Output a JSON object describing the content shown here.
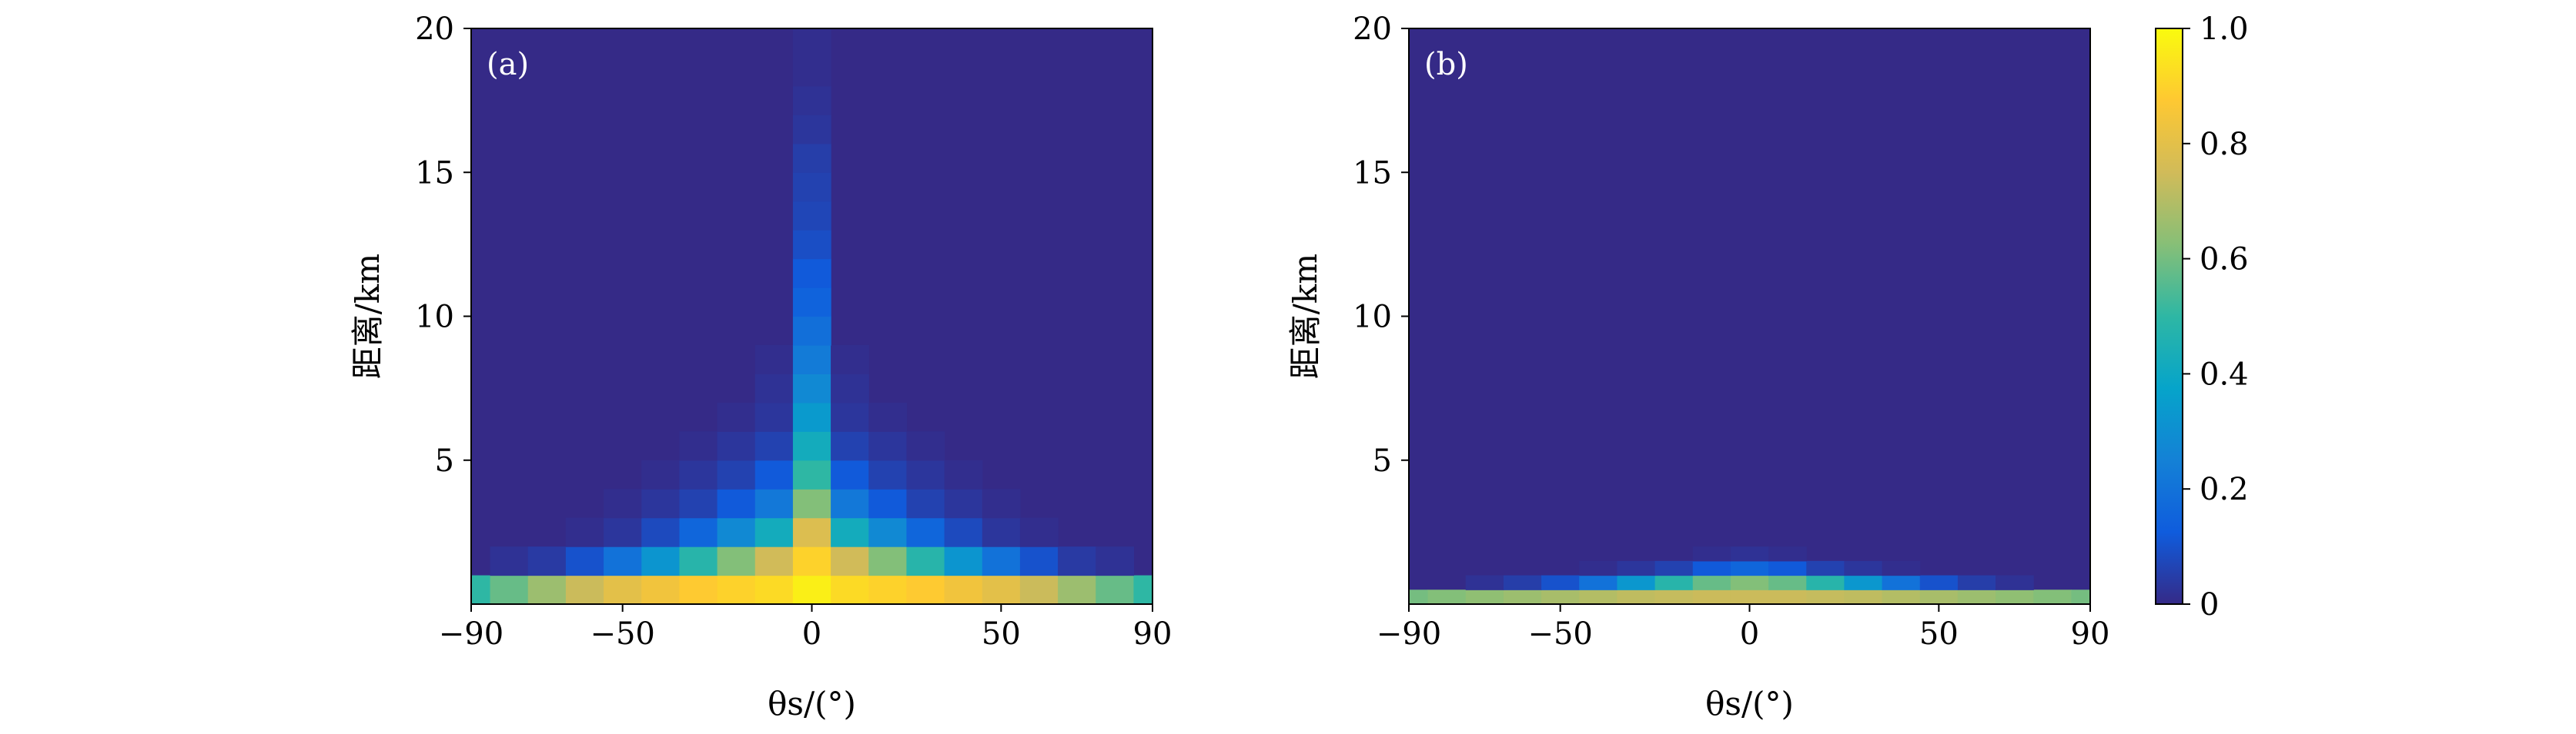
{
  "chart_data": [
    {
      "type": "heatmap",
      "panel_label": "(a)",
      "xlabel": "θs/(°)",
      "ylabel": "距离/km",
      "xlim": [
        -90,
        90
      ],
      "ylim": [
        0,
        20
      ],
      "xticks": [
        "−90",
        "−50",
        "0",
        "50",
        "90"
      ],
      "xtick_values": [
        -90,
        -50,
        0,
        50,
        90
      ],
      "yticks": [
        "5",
        "10",
        "15",
        "20"
      ],
      "ytick_values": [
        5,
        10,
        15,
        20
      ],
      "x": [
        -90,
        -80,
        -70,
        -60,
        -50,
        -40,
        -30,
        -20,
        -10,
        0,
        10,
        20,
        30,
        40,
        50,
        60,
        70,
        80,
        90
      ],
      "y": [
        0.5,
        1.5,
        2.5,
        3.5,
        4.5,
        5.5,
        6.5,
        7.5,
        8.5,
        9.5,
        10.5,
        11.5,
        12.5,
        13.5,
        14.5,
        15.5,
        16.5,
        17.5,
        18.5,
        19.5
      ],
      "z": [
        [
          0.5,
          0.58,
          0.66,
          0.74,
          0.8,
          0.84,
          0.88,
          0.9,
          0.92,
          0.97,
          0.92,
          0.9,
          0.88,
          0.84,
          0.8,
          0.74,
          0.66,
          0.58,
          0.5
        ],
        [
          0.0,
          0.02,
          0.04,
          0.1,
          0.2,
          0.32,
          0.48,
          0.62,
          0.75,
          0.9,
          0.75,
          0.62,
          0.48,
          0.32,
          0.2,
          0.1,
          0.04,
          0.02,
          0.0
        ],
        [
          0.0,
          0.0,
          0.0,
          0.01,
          0.03,
          0.08,
          0.16,
          0.28,
          0.42,
          0.78,
          0.42,
          0.28,
          0.16,
          0.08,
          0.03,
          0.01,
          0.0,
          0.0,
          0.0
        ],
        [
          0.0,
          0.0,
          0.0,
          0.0,
          0.01,
          0.03,
          0.06,
          0.12,
          0.22,
          0.62,
          0.22,
          0.12,
          0.06,
          0.03,
          0.01,
          0.0,
          0.0,
          0.0,
          0.0
        ],
        [
          0.0,
          0.0,
          0.0,
          0.0,
          0.0,
          0.01,
          0.03,
          0.06,
          0.12,
          0.5,
          0.12,
          0.06,
          0.03,
          0.01,
          0.0,
          0.0,
          0.0,
          0.0,
          0.0
        ],
        [
          0.0,
          0.0,
          0.0,
          0.0,
          0.0,
          0.0,
          0.01,
          0.03,
          0.06,
          0.42,
          0.06,
          0.03,
          0.01,
          0.0,
          0.0,
          0.0,
          0.0,
          0.0,
          0.0
        ],
        [
          0.0,
          0.0,
          0.0,
          0.0,
          0.0,
          0.0,
          0.0,
          0.01,
          0.03,
          0.34,
          0.03,
          0.01,
          0.0,
          0.0,
          0.0,
          0.0,
          0.0,
          0.0,
          0.0
        ],
        [
          0.0,
          0.0,
          0.0,
          0.0,
          0.0,
          0.0,
          0.0,
          0.0,
          0.02,
          0.28,
          0.02,
          0.0,
          0.0,
          0.0,
          0.0,
          0.0,
          0.0,
          0.0,
          0.0
        ],
        [
          0.0,
          0.0,
          0.0,
          0.0,
          0.0,
          0.0,
          0.0,
          0.0,
          0.01,
          0.23,
          0.01,
          0.0,
          0.0,
          0.0,
          0.0,
          0.0,
          0.0,
          0.0,
          0.0
        ],
        [
          0.0,
          0.0,
          0.0,
          0.0,
          0.0,
          0.0,
          0.0,
          0.0,
          0.0,
          0.19,
          0.0,
          0.0,
          0.0,
          0.0,
          0.0,
          0.0,
          0.0,
          0.0,
          0.0
        ],
        [
          0.0,
          0.0,
          0.0,
          0.0,
          0.0,
          0.0,
          0.0,
          0.0,
          0.0,
          0.15,
          0.0,
          0.0,
          0.0,
          0.0,
          0.0,
          0.0,
          0.0,
          0.0,
          0.0
        ],
        [
          0.0,
          0.0,
          0.0,
          0.0,
          0.0,
          0.0,
          0.0,
          0.0,
          0.0,
          0.12,
          0.0,
          0.0,
          0.0,
          0.0,
          0.0,
          0.0,
          0.0,
          0.0,
          0.0
        ],
        [
          0.0,
          0.0,
          0.0,
          0.0,
          0.0,
          0.0,
          0.0,
          0.0,
          0.0,
          0.09,
          0.0,
          0.0,
          0.0,
          0.0,
          0.0,
          0.0,
          0.0,
          0.0,
          0.0
        ],
        [
          0.0,
          0.0,
          0.0,
          0.0,
          0.0,
          0.0,
          0.0,
          0.0,
          0.0,
          0.07,
          0.0,
          0.0,
          0.0,
          0.0,
          0.0,
          0.0,
          0.0,
          0.0,
          0.0
        ],
        [
          0.0,
          0.0,
          0.0,
          0.0,
          0.0,
          0.0,
          0.0,
          0.0,
          0.0,
          0.06,
          0.0,
          0.0,
          0.0,
          0.0,
          0.0,
          0.0,
          0.0,
          0.0,
          0.0
        ],
        [
          0.0,
          0.0,
          0.0,
          0.0,
          0.0,
          0.0,
          0.0,
          0.0,
          0.0,
          0.05,
          0.0,
          0.0,
          0.0,
          0.0,
          0.0,
          0.0,
          0.0,
          0.0,
          0.0
        ],
        [
          0.0,
          0.0,
          0.0,
          0.0,
          0.0,
          0.0,
          0.0,
          0.0,
          0.0,
          0.03,
          0.0,
          0.0,
          0.0,
          0.0,
          0.0,
          0.0,
          0.0,
          0.0,
          0.0
        ],
        [
          0.0,
          0.0,
          0.0,
          0.0,
          0.0,
          0.0,
          0.0,
          0.0,
          0.0,
          0.02,
          0.0,
          0.0,
          0.0,
          0.0,
          0.0,
          0.0,
          0.0,
          0.0,
          0.0
        ],
        [
          0.0,
          0.0,
          0.0,
          0.0,
          0.0,
          0.0,
          0.0,
          0.0,
          0.0,
          0.01,
          0.0,
          0.0,
          0.0,
          0.0,
          0.0,
          0.0,
          0.0,
          0.0,
          0.0
        ],
        [
          0.0,
          0.0,
          0.0,
          0.0,
          0.0,
          0.0,
          0.0,
          0.0,
          0.0,
          0.01,
          0.0,
          0.0,
          0.0,
          0.0,
          0.0,
          0.0,
          0.0,
          0.0,
          0.0
        ]
      ]
    },
    {
      "type": "heatmap",
      "panel_label": "(b)",
      "xlabel": "θs/(°)",
      "ylabel": "距离/km",
      "xlim": [
        -90,
        90
      ],
      "ylim": [
        0,
        20
      ],
      "xticks": [
        "−90",
        "−50",
        "0",
        "50",
        "90"
      ],
      "xtick_values": [
        -90,
        -50,
        0,
        50,
        90
      ],
      "yticks": [
        "5",
        "10",
        "15",
        "20"
      ],
      "ytick_values": [
        5,
        10,
        15,
        20
      ],
      "x": [
        -90,
        -80,
        -70,
        -60,
        -50,
        -40,
        -30,
        -20,
        -10,
        0,
        10,
        20,
        30,
        40,
        50,
        60,
        70,
        80,
        90
      ],
      "y": [
        0.25,
        0.75,
        1.25,
        1.75,
        2.25
      ],
      "z": [
        [
          0.6,
          0.62,
          0.64,
          0.66,
          0.68,
          0.7,
          0.72,
          0.73,
          0.74,
          0.74,
          0.74,
          0.73,
          0.72,
          0.7,
          0.68,
          0.66,
          0.64,
          0.62,
          0.6
        ],
        [
          0.0,
          0.0,
          0.02,
          0.05,
          0.1,
          0.2,
          0.33,
          0.48,
          0.58,
          0.62,
          0.58,
          0.48,
          0.33,
          0.2,
          0.1,
          0.05,
          0.02,
          0.0,
          0.0
        ],
        [
          0.0,
          0.0,
          0.0,
          0.0,
          0.0,
          0.01,
          0.03,
          0.06,
          0.12,
          0.16,
          0.12,
          0.06,
          0.03,
          0.01,
          0.0,
          0.0,
          0.0,
          0.0,
          0.0
        ],
        [
          0.0,
          0.0,
          0.0,
          0.0,
          0.0,
          0.0,
          0.0,
          0.0,
          0.01,
          0.02,
          0.01,
          0.0,
          0.0,
          0.0,
          0.0,
          0.0,
          0.0,
          0.0,
          0.0
        ],
        [
          0.0,
          0.0,
          0.0,
          0.0,
          0.0,
          0.0,
          0.0,
          0.0,
          0.0,
          0.0,
          0.0,
          0.0,
          0.0,
          0.0,
          0.0,
          0.0,
          0.0,
          0.0,
          0.0
        ]
      ]
    }
  ],
  "colorbar": {
    "min": 0,
    "max": 1,
    "tick_values": [
      0,
      0.2,
      0.4,
      0.6,
      0.8,
      1.0
    ],
    "tick_labels": [
      "0",
      "0.2",
      "0.4",
      "0.6",
      "0.8",
      "1.0"
    ],
    "colormap": "parula",
    "colors": [
      "#352a87",
      "#0f5cdd",
      "#1481d6",
      "#06a4ca",
      "#2eb7a4",
      "#87bf77",
      "#d1bb59",
      "#fec832",
      "#f9fb0e"
    ]
  }
}
